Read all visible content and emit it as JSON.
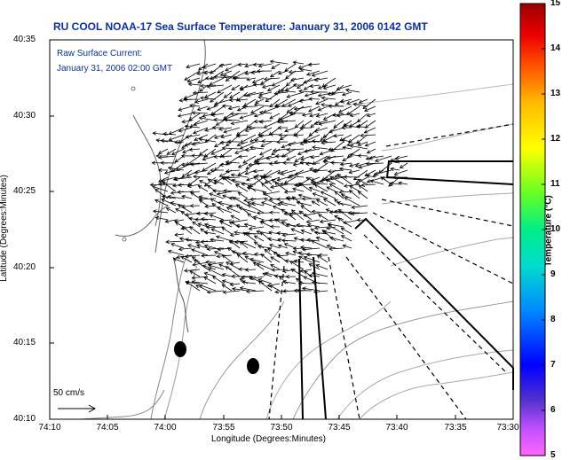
{
  "title": "RU COOL  NOAA-17  Sea Surface Temperature:  January 31, 2006 0142 GMT",
  "current_label": {
    "line1": "Raw Surface Current:",
    "line2": "January 31, 2006 02:00 GMT"
  },
  "scale_label": "50 cm/s",
  "x_axis": {
    "label": "Longitude (Degrees:Minutes)",
    "ticks": [
      "74:10",
      "74:05",
      "74:00",
      "73:55",
      "73:50",
      "73:45",
      "73:40",
      "73:35",
      "73:30"
    ]
  },
  "y_axis": {
    "label": "Latitude (Degrees:Minutes)",
    "ticks": [
      "40:35",
      "40:30",
      "40:25",
      "40:20",
      "40:15",
      "40:10"
    ]
  },
  "colorbar": {
    "label": "Temperature (°C)",
    "min": 5,
    "max": 15,
    "ticks": [
      "15",
      "14",
      "13",
      "12",
      "11",
      "10",
      "9",
      "8",
      "7",
      "6",
      "5"
    ]
  },
  "colors": {
    "title": "#0a2fb0",
    "vectors": "#000000",
    "land_contours": "#888888"
  }
}
